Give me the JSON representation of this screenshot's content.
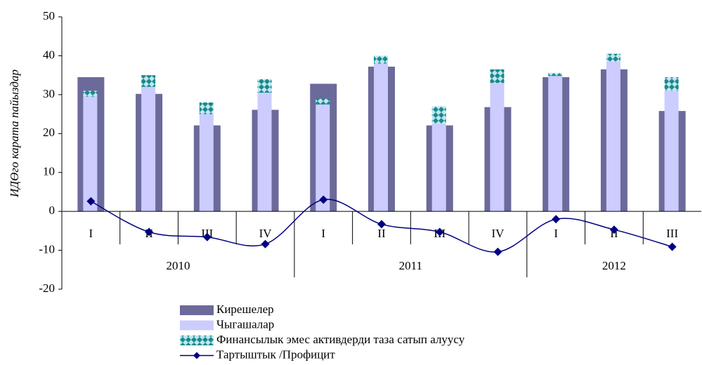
{
  "chart_data": {
    "type": "bar",
    "y_label": "ИДӨго карата пайыздар",
    "categories": [
      "I",
      "II",
      "III",
      "IV",
      "I",
      "II",
      "III",
      "IV",
      "I",
      "II",
      "III"
    ],
    "category_groups": [
      "2010",
      null,
      null,
      null,
      "2011",
      null,
      null,
      null,
      "2012",
      null,
      null
    ],
    "ylim": [
      -20,
      50
    ],
    "yticks": [
      -20,
      -10,
      0,
      10,
      20,
      30,
      40,
      50
    ],
    "series": [
      {
        "name": "Кирешелер",
        "type": "bar",
        "color": "#6b6a9a",
        "values": [
          34.5,
          30.2,
          22.1,
          26.1,
          32.8,
          37.2,
          22.1,
          26.8,
          34.5,
          36.5,
          25.8
        ]
      },
      {
        "name": "Чыгашалар",
        "type": "bar",
        "color": "#ccccff",
        "values": [
          29.5,
          32,
          25,
          30.5,
          27.5,
          38,
          22.5,
          33,
          34.8,
          38.5,
          31
        ]
      },
      {
        "name": "Финансылык эмес активдерди таза сатып алуусу",
        "type": "bar",
        "stacked": true,
        "color": "#1a8a8a",
        "values": [
          1.5,
          3,
          3,
          3.5,
          1.5,
          2,
          4.5,
          3.5,
          0.8,
          2,
          3.5
        ]
      },
      {
        "name": "Тартыштык /Профицит",
        "type": "line",
        "color": "#000080",
        "values": [
          2.6,
          -5.3,
          -6.6,
          -8.4,
          3.0,
          -3.3,
          -5.3,
          -10.4,
          -2.0,
          -4.7,
          -9.1
        ]
      }
    ]
  }
}
